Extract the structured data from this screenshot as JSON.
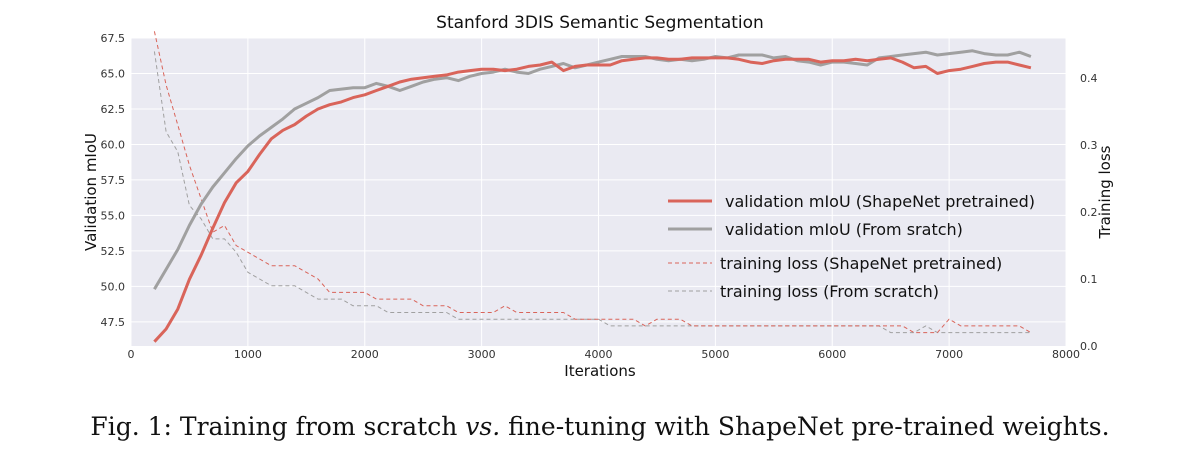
{
  "chart_data": {
    "type": "line",
    "title": "Stanford 3DIS Semantic Segmentation",
    "xlabel": "Iterations",
    "ylabel": "Validation mIoU",
    "y2label": "Training loss",
    "xlim": [
      0,
      8000
    ],
    "ylim": [
      45.8,
      67.5
    ],
    "y2lim": [
      0.0,
      0.46
    ],
    "xticks": [
      0,
      1000,
      2000,
      3000,
      4000,
      5000,
      6000,
      7000,
      8000
    ],
    "yticks": [
      47.5,
      50.0,
      52.5,
      55.0,
      57.5,
      60.0,
      62.5,
      65.0,
      67.5
    ],
    "y2ticks": [
      0.0,
      0.1,
      0.2,
      0.3,
      0.4
    ],
    "grid": true,
    "legend_position": "center-right",
    "x": [
      200,
      300,
      400,
      500,
      600,
      700,
      800,
      900,
      1000,
      1100,
      1200,
      1300,
      1400,
      1500,
      1600,
      1700,
      1800,
      1900,
      2000,
      2100,
      2200,
      2300,
      2400,
      2500,
      2600,
      2700,
      2800,
      2900,
      3000,
      3100,
      3200,
      3300,
      3400,
      3500,
      3600,
      3700,
      3800,
      3900,
      4000,
      4100,
      4200,
      4300,
      4400,
      4500,
      4600,
      4700,
      4800,
      4900,
      5000,
      5100,
      5200,
      5300,
      5400,
      5500,
      5600,
      5700,
      5800,
      5900,
      6000,
      6100,
      6200,
      6300,
      6400,
      6500,
      6600,
      6700,
      6800,
      6900,
      7000,
      7100,
      7200,
      7300,
      7400,
      7500,
      7600,
      7700
    ],
    "series": [
      {
        "name": "validation mIoU (ShapeNet pretrained)",
        "axis": "left",
        "color": "#d9645a",
        "style": "solid",
        "values": [
          46.1,
          47.0,
          48.4,
          50.5,
          52.2,
          54.1,
          55.9,
          57.3,
          58.1,
          59.3,
          60.4,
          61.0,
          61.4,
          62.0,
          62.5,
          62.8,
          63.0,
          63.3,
          63.5,
          63.8,
          64.1,
          64.4,
          64.6,
          64.7,
          64.8,
          64.9,
          65.1,
          65.2,
          65.3,
          65.3,
          65.2,
          65.3,
          65.5,
          65.6,
          65.8,
          65.2,
          65.5,
          65.6,
          65.6,
          65.6,
          65.9,
          66.0,
          66.1,
          66.1,
          66.0,
          66.0,
          66.1,
          66.1,
          66.1,
          66.1,
          66.0,
          65.8,
          65.7,
          65.9,
          66.0,
          66.0,
          66.0,
          65.8,
          65.9,
          65.9,
          66.0,
          65.9,
          66.0,
          66.1,
          65.8,
          65.4,
          65.5,
          65.0,
          65.2,
          65.3,
          65.5,
          65.7,
          65.8,
          65.8,
          65.6,
          65.4
        ]
      },
      {
        "name": "validation mIoU (From sratch)",
        "axis": "left",
        "color": "#a0a0a0",
        "style": "solid",
        "values": [
          49.8,
          51.2,
          52.6,
          54.3,
          55.8,
          57.0,
          58.0,
          59.0,
          59.9,
          60.6,
          61.2,
          61.8,
          62.5,
          62.9,
          63.3,
          63.8,
          63.9,
          64.0,
          64.0,
          64.3,
          64.1,
          63.8,
          64.1,
          64.4,
          64.6,
          64.7,
          64.5,
          64.8,
          65.0,
          65.1,
          65.3,
          65.1,
          65.0,
          65.3,
          65.5,
          65.7,
          65.4,
          65.6,
          65.8,
          66.0,
          66.2,
          66.2,
          66.2,
          66.0,
          65.9,
          66.0,
          65.9,
          66.0,
          66.2,
          66.1,
          66.3,
          66.3,
          66.3,
          66.1,
          66.2,
          65.9,
          65.8,
          65.6,
          65.8,
          65.8,
          65.7,
          65.6,
          66.1,
          66.2,
          66.3,
          66.4,
          66.5,
          66.3,
          66.4,
          66.5,
          66.6,
          66.4,
          66.3,
          66.3,
          66.5,
          66.2
        ]
      },
      {
        "name": "training loss (ShapeNet pretrained)",
        "axis": "right",
        "color": "#d9645a",
        "style": "dashed",
        "values": [
          0.47,
          0.39,
          0.33,
          0.27,
          0.22,
          0.17,
          0.18,
          0.15,
          0.14,
          0.13,
          0.12,
          0.12,
          0.12,
          0.11,
          0.1,
          0.08,
          0.08,
          0.08,
          0.08,
          0.07,
          0.07,
          0.07,
          0.07,
          0.06,
          0.06,
          0.06,
          0.05,
          0.05,
          0.05,
          0.05,
          0.06,
          0.05,
          0.05,
          0.05,
          0.05,
          0.05,
          0.04,
          0.04,
          0.04,
          0.04,
          0.04,
          0.04,
          0.03,
          0.04,
          0.04,
          0.04,
          0.03,
          0.03,
          0.03,
          0.03,
          0.03,
          0.03,
          0.03,
          0.03,
          0.03,
          0.03,
          0.03,
          0.03,
          0.03,
          0.03,
          0.03,
          0.03,
          0.03,
          0.03,
          0.03,
          0.02,
          0.02,
          0.02,
          0.04,
          0.03,
          0.03,
          0.03,
          0.03,
          0.03,
          0.03,
          0.02
        ]
      },
      {
        "name": "training loss (From scratch)",
        "axis": "right",
        "color": "#a0a0a0",
        "style": "dashed",
        "values": [
          0.44,
          0.32,
          0.29,
          0.21,
          0.19,
          0.16,
          0.16,
          0.14,
          0.11,
          0.1,
          0.09,
          0.09,
          0.09,
          0.08,
          0.07,
          0.07,
          0.07,
          0.06,
          0.06,
          0.06,
          0.05,
          0.05,
          0.05,
          0.05,
          0.05,
          0.05,
          0.04,
          0.04,
          0.04,
          0.04,
          0.04,
          0.04,
          0.04,
          0.04,
          0.04,
          0.04,
          0.04,
          0.04,
          0.04,
          0.03,
          0.03,
          0.03,
          0.03,
          0.03,
          0.03,
          0.03,
          0.03,
          0.03,
          0.03,
          0.03,
          0.03,
          0.03,
          0.03,
          0.03,
          0.03,
          0.03,
          0.03,
          0.03,
          0.03,
          0.03,
          0.03,
          0.03,
          0.03,
          0.02,
          0.02,
          0.02,
          0.03,
          0.02,
          0.02,
          0.02,
          0.02,
          0.02,
          0.02,
          0.02,
          0.02,
          0.02
        ]
      }
    ]
  },
  "caption": {
    "prefix": "Fig. 1:  Training from scratch ",
    "emphasis": "vs.",
    "suffix": " fine-tuning with ShapeNet pre-trained weights."
  }
}
